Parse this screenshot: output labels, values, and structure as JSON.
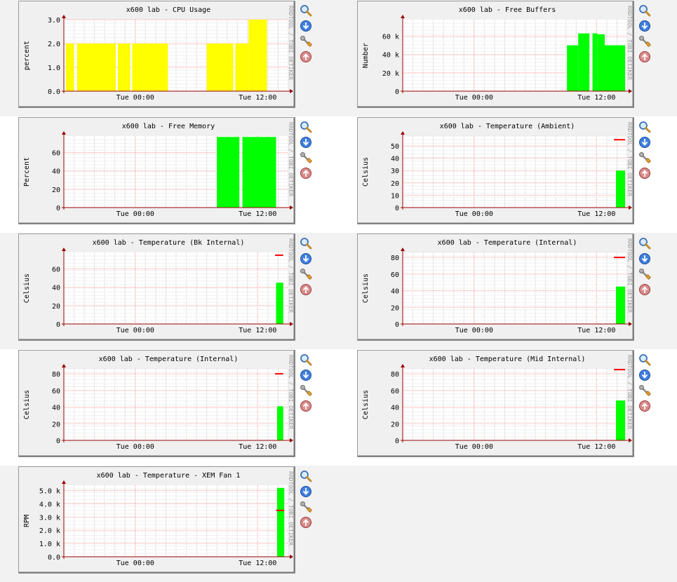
{
  "host": "x600 lab",
  "vendor_note": "RRDTOOL / TOBI OETIKER",
  "icons": [
    "magnifier-icon",
    "down-arrow-icon",
    "wrench-icon",
    "up-arrow-icon"
  ],
  "colors": {
    "cpu_area": "#ffff00",
    "area": "#00ff00",
    "threshold": "#ff0000",
    "axis": "#990000"
  },
  "chart_data": [
    {
      "type": "area",
      "title": "x600 lab - CPU Usage",
      "ylabel": "percent",
      "ylim": [
        0,
        3.0
      ],
      "yticks": [
        "0.0",
        "1.0",
        "2.0",
        "3.0"
      ],
      "xticks": [
        "Tue 00:00",
        "Tue 12:00"
      ],
      "xlim": [
        -7,
        15
      ],
      "series": [
        {
          "color": "#ffff00",
          "segments": [
            {
              "x": [
                -6.8,
                -6.0
              ],
              "y": 2.0
            },
            {
              "x": [
                -5.7,
                -1.9
              ],
              "y": 2.0
            },
            {
              "x": [
                -1.7,
                -0.5
              ],
              "y": 2.0
            },
            {
              "x": [
                -0.3,
                3.2
              ],
              "y": 2.0
            },
            {
              "x": [
                7.0,
                9.6
              ],
              "y": 2.0
            },
            {
              "x": [
                9.8,
                11.1
              ],
              "y": 2.0
            },
            {
              "x": [
                11.1,
                12.0
              ],
              "y": 3.0
            },
            {
              "x": [
                12.0,
                12.9
              ],
              "y": 3.0
            }
          ]
        }
      ]
    },
    {
      "type": "area",
      "title": "x600 lab - Free Buffers",
      "ylabel": "Number",
      "ylim": [
        0,
        78000
      ],
      "yticks": [
        "0",
        "20 k",
        "40 k",
        "60 k"
      ],
      "ytick_values": [
        0,
        20000,
        40000,
        60000
      ],
      "xticks": [
        "Tue 00:00",
        "Tue 12:00"
      ],
      "xlim": [
        -7,
        15
      ],
      "series": [
        {
          "color": "#00ff00",
          "segments": [
            {
              "x": [
                9.1,
                10.2
              ],
              "y": 50000
            },
            {
              "x": [
                10.2,
                11.3
              ],
              "y": 63000
            },
            {
              "x": [
                11.6,
                12.1
              ],
              "y": 63000
            },
            {
              "x": [
                12.1,
                12.8
              ],
              "y": 62000
            },
            {
              "x": [
                12.8,
                14.8
              ],
              "y": 50000
            }
          ]
        }
      ]
    },
    {
      "type": "area",
      "title": "x600 lab - Free Memory",
      "ylabel": "Percent",
      "ylim": [
        0,
        78
      ],
      "yticks": [
        "0",
        "20",
        "40",
        "60"
      ],
      "ytick_values": [
        0,
        20,
        40,
        60
      ],
      "xticks": [
        "Tue 00:00",
        "Tue 12:00"
      ],
      "xlim": [
        -7,
        15
      ],
      "series": [
        {
          "color": "#00ff00",
          "segments": [
            {
              "x": [
                8.0,
                10.2
              ],
              "y": 77
            },
            {
              "x": [
                10.5,
                13.8
              ],
              "y": 77
            }
          ]
        }
      ]
    },
    {
      "type": "area",
      "title": "x600 lab - Temperature (Ambient)",
      "ylabel": "Celsius",
      "ylim": [
        0,
        58
      ],
      "yticks": [
        "0",
        "10",
        "20",
        "30",
        "40",
        "50"
      ],
      "ytick_values": [
        0,
        10,
        20,
        30,
        40,
        50
      ],
      "xticks": [
        "Tue 00:00",
        "Tue 12:00"
      ],
      "xlim": [
        -7,
        15
      ],
      "threshold": {
        "value": 55,
        "x": [
          13.7,
          14.8
        ]
      },
      "series": [
        {
          "color": "#00ff00",
          "segments": [
            {
              "x": [
                13.9,
                14.8
              ],
              "y": 30
            }
          ]
        }
      ]
    },
    {
      "type": "area",
      "title": "x600 lab - Temperature (Bk Internal)",
      "ylabel": "Celsius",
      "ylim": [
        0,
        78
      ],
      "yticks": [
        "0",
        "20",
        "40",
        "60"
      ],
      "ytick_values": [
        0,
        20,
        40,
        60
      ],
      "xticks": [
        "Tue 00:00",
        "Tue 12:00"
      ],
      "xlim": [
        -7,
        15
      ],
      "threshold": {
        "value": 75,
        "x": [
          13.7,
          14.5
        ]
      },
      "series": [
        {
          "color": "#00ff00",
          "segments": [
            {
              "x": [
                13.8,
                14.5
              ],
              "y": 45
            }
          ]
        }
      ]
    },
    {
      "type": "area",
      "title": "x600 lab - Temperature (Internal)",
      "ylabel": "Celsius",
      "ylim": [
        0,
        86
      ],
      "yticks": [
        "0",
        "20",
        "40",
        "60",
        "80"
      ],
      "ytick_values": [
        0,
        20,
        40,
        60,
        80
      ],
      "xticks": [
        "Tue 00:00",
        "Tue 12:00"
      ],
      "xlim": [
        -7,
        15
      ],
      "threshold": {
        "value": 80,
        "x": [
          13.7,
          14.8
        ]
      },
      "series": [
        {
          "color": "#00ff00",
          "segments": [
            {
              "x": [
                13.9,
                14.8
              ],
              "y": 45
            }
          ]
        }
      ]
    },
    {
      "type": "area",
      "title": "x600 lab - Temperature (Internal)",
      "ylabel": "Celsius",
      "ylim": [
        0,
        86
      ],
      "yticks": [
        "0",
        "20",
        "40",
        "60",
        "80"
      ],
      "ytick_values": [
        0,
        20,
        40,
        60,
        80
      ],
      "xticks": [
        "Tue 00:00",
        "Tue 12:00"
      ],
      "xlim": [
        -7,
        15
      ],
      "threshold": {
        "value": 80,
        "x": [
          13.7,
          14.5
        ]
      },
      "series": [
        {
          "color": "#00ff00",
          "segments": [
            {
              "x": [
                13.9,
                14.5
              ],
              "y": 41
            }
          ]
        }
      ]
    },
    {
      "type": "area",
      "title": "x600 lab - Temperature (Mid Internal)",
      "ylabel": "Celsius",
      "ylim": [
        0,
        86
      ],
      "yticks": [
        "0",
        "20",
        "40",
        "60",
        "80"
      ],
      "ytick_values": [
        0,
        20,
        40,
        60,
        80
      ],
      "xticks": [
        "Tue 00:00",
        "Tue 12:00"
      ],
      "xlim": [
        -7,
        15
      ],
      "threshold": {
        "value": 85,
        "x": [
          13.7,
          14.8
        ]
      },
      "series": [
        {
          "color": "#00ff00",
          "segments": [
            {
              "x": [
                13.9,
                14.8
              ],
              "y": 48
            }
          ]
        }
      ]
    },
    {
      "type": "area",
      "title": "x600 lab - Temperature - XEM Fan 1",
      "ylabel": "RPM",
      "ylim": [
        0,
        5400
      ],
      "yticks": [
        "0.0",
        "1.0 k",
        "2.0 k",
        "3.0 k",
        "4.0 k",
        "5.0 k"
      ],
      "ytick_values": [
        0,
        1000,
        2000,
        3000,
        4000,
        5000
      ],
      "xticks": [
        "Tue 00:00",
        "Tue 12:00"
      ],
      "xlim": [
        -7,
        15
      ],
      "threshold": {
        "value": 3500,
        "x": [
          13.8,
          14.6
        ]
      },
      "series": [
        {
          "color": "#00ff00",
          "segments": [
            {
              "x": [
                13.9,
                14.6
              ],
              "y": 5200
            }
          ]
        }
      ]
    }
  ]
}
